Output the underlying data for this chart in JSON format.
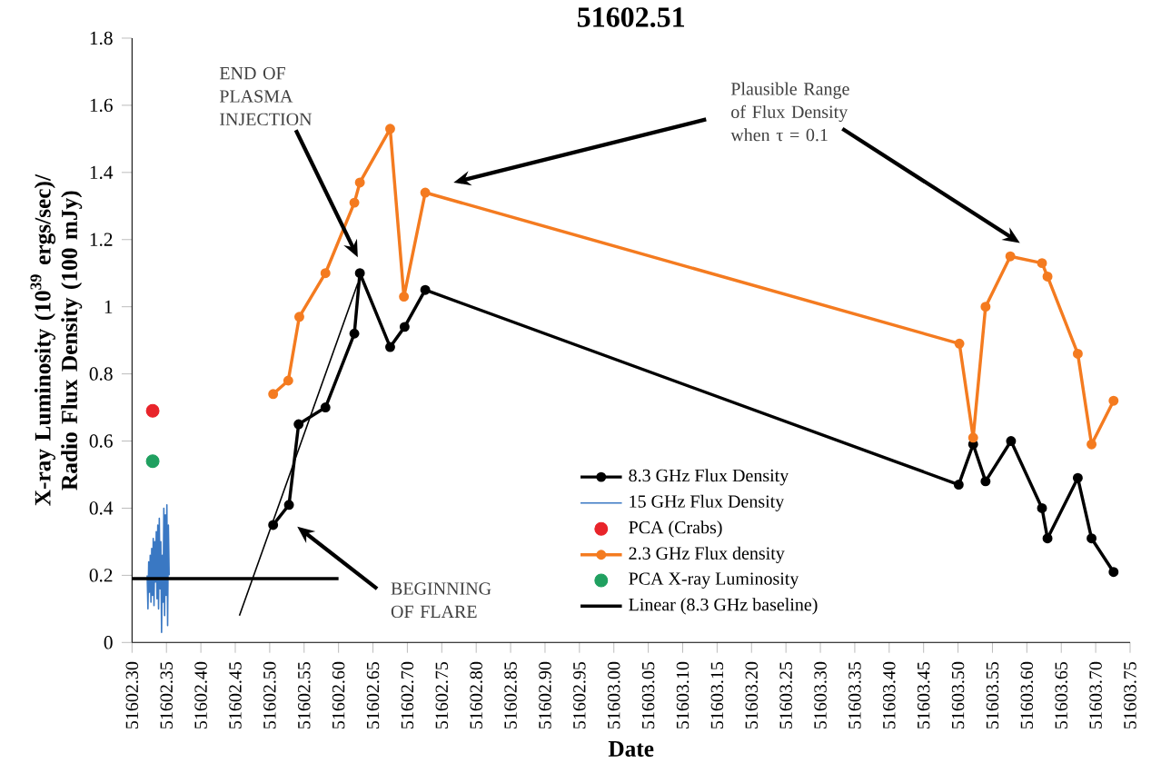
{
  "chart_data": {
    "type": "line",
    "title": "51602.51",
    "xlabel": "Date",
    "ylabel": "X-ray Luminosity (10$^{39}$ ergs/sec)/ Radio Flux Density (100 mJy)",
    "xlim": [
      51602.3,
      51603.75
    ],
    "ylim": [
      0,
      1.8
    ],
    "xticks": [
      {
        "value": 51602.3,
        "label": "51602.30"
      },
      {
        "value": 51602.35,
        "label": "51602.35"
      },
      {
        "value": 51602.4,
        "label": "51602.40"
      },
      {
        "value": 51602.45,
        "label": "51602.45"
      },
      {
        "value": 51602.5,
        "label": "51602.50"
      },
      {
        "value": 51602.55,
        "label": "51602.55"
      },
      {
        "value": 51602.6,
        "label": "51602.60"
      },
      {
        "value": 51602.65,
        "label": "51602.65"
      },
      {
        "value": 51602.7,
        "label": "51602.70"
      },
      {
        "value": 51602.75,
        "label": "51602.75"
      },
      {
        "value": 51602.8,
        "label": "51602.80"
      },
      {
        "value": 51602.85,
        "label": "51602.85"
      },
      {
        "value": 51602.9,
        "label": "51602.90"
      },
      {
        "value": 51602.95,
        "label": "51602.95"
      },
      {
        "value": 51603.0,
        "label": "51603.00"
      },
      {
        "value": 51603.05,
        "label": "51603.05"
      },
      {
        "value": 51603.1,
        "label": "51603.10"
      },
      {
        "value": 51603.15,
        "label": "51603.15"
      },
      {
        "value": 51603.2,
        "label": "51603.20"
      },
      {
        "value": 51603.25,
        "label": "51603.25"
      },
      {
        "value": 51603.3,
        "label": "51603.30"
      },
      {
        "value": 51603.35,
        "label": "51603.35"
      },
      {
        "value": 51603.4,
        "label": "51603.40"
      },
      {
        "value": 51603.45,
        "label": "51603.45"
      },
      {
        "value": 51603.5,
        "label": "51603.50"
      },
      {
        "value": 51603.55,
        "label": "51603.55"
      },
      {
        "value": 51603.6,
        "label": "51603.60"
      },
      {
        "value": 51603.65,
        "label": "51603.65"
      },
      {
        "value": 51603.7,
        "label": "51603.70"
      },
      {
        "value": 51603.75,
        "label": "51603.75"
      }
    ],
    "yticks": [
      0,
      0.2,
      0.4,
      0.6,
      0.8,
      1,
      1.2,
      1.4,
      1.6,
      1.8
    ],
    "grid": false,
    "legend": "bottom",
    "series": [
      {
        "name": "8.3 GHz Flux Density",
        "type": "line",
        "color": "#000000",
        "marker": "circle",
        "x": [
          51602.505,
          51602.528,
          51602.542,
          51602.581,
          51602.623,
          51602.631,
          51602.675,
          51602.696,
          51602.726,
          51603.501,
          51603.522,
          51603.54,
          51603.577,
          51603.622,
          51603.63,
          51603.674,
          51603.694,
          51603.726
        ],
        "values": [
          0.35,
          0.41,
          0.65,
          0.7,
          0.92,
          1.1,
          0.88,
          0.94,
          1.05,
          0.47,
          0.59,
          0.48,
          0.6,
          0.4,
          0.31,
          0.49,
          0.31,
          0.21
        ]
      },
      {
        "name": "15 GHz Flux Density",
        "type": "line",
        "color": "#3a78c3",
        "marker": "none",
        "x": [
          51602.322,
          51602.3231,
          51602.3242,
          51602.3253,
          51602.3264,
          51602.3275,
          51602.3286,
          51602.3297,
          51602.3308,
          51602.3319,
          51602.333,
          51602.3341,
          51602.3352,
          51602.3363,
          51602.3374,
          51602.3385,
          51602.3396,
          51602.3407,
          51602.3418,
          51602.3429,
          51602.344,
          51602.3451,
          51602.3462,
          51602.3473,
          51602.3484,
          51602.3495,
          51602.3506,
          51602.3517,
          51602.3528,
          51602.3539
        ],
        "values": [
          0.2,
          0.1,
          0.24,
          0.15,
          0.26,
          0.12,
          0.28,
          0.14,
          0.31,
          0.11,
          0.3,
          0.18,
          0.33,
          0.13,
          0.35,
          0.1,
          0.37,
          0.16,
          0.3,
          0.03,
          0.26,
          0.12,
          0.4,
          0.08,
          0.38,
          0.14,
          0.41,
          0.05,
          0.35,
          0.2
        ]
      },
      {
        "name": "PCA (Crabs)",
        "type": "scatter",
        "color": "#e8242a",
        "marker": "circle",
        "x": [
          51602.33
        ],
        "values": [
          0.69
        ]
      },
      {
        "name": "2.3 GHz Flux density",
        "type": "line",
        "color": "#f47b20",
        "marker": "circle",
        "x": [
          51602.505,
          51602.527,
          51602.543,
          51602.581,
          51602.623,
          51602.631,
          51602.675,
          51602.695,
          51602.726,
          51603.502,
          51603.522,
          51603.54,
          51603.576,
          51603.622,
          51603.63,
          51603.674,
          51603.694,
          51603.726
        ],
        "values": [
          0.74,
          0.78,
          0.97,
          1.1,
          1.31,
          1.37,
          1.53,
          1.03,
          1.34,
          0.89,
          0.61,
          1.0,
          1.15,
          1.13,
          1.09,
          0.86,
          0.59,
          0.72
        ]
      },
      {
        "name": "PCA X-ray Luminosity",
        "type": "scatter",
        "color": "#20a060",
        "marker": "circle",
        "x": [
          51602.33
        ],
        "values": [
          0.54
        ]
      },
      {
        "name": "Linear (8.3 GHz baseline)",
        "type": "line",
        "color": "#000000",
        "marker": "none",
        "x": [
          51602.3,
          51602.6
        ],
        "values": [
          0.19,
          0.19
        ]
      },
      {
        "color": "#000000",
        "marker": "none",
        "x": [
          51602.456,
          51602.628
        ],
        "values": [
          0.08,
          1.07
        ]
      }
    ],
    "annotations": [
      "END OF PLASMA INJECTION",
      "Plausible Range of Flux Density when τ = 0.1",
      "BEGINNING OF FLARE"
    ]
  }
}
